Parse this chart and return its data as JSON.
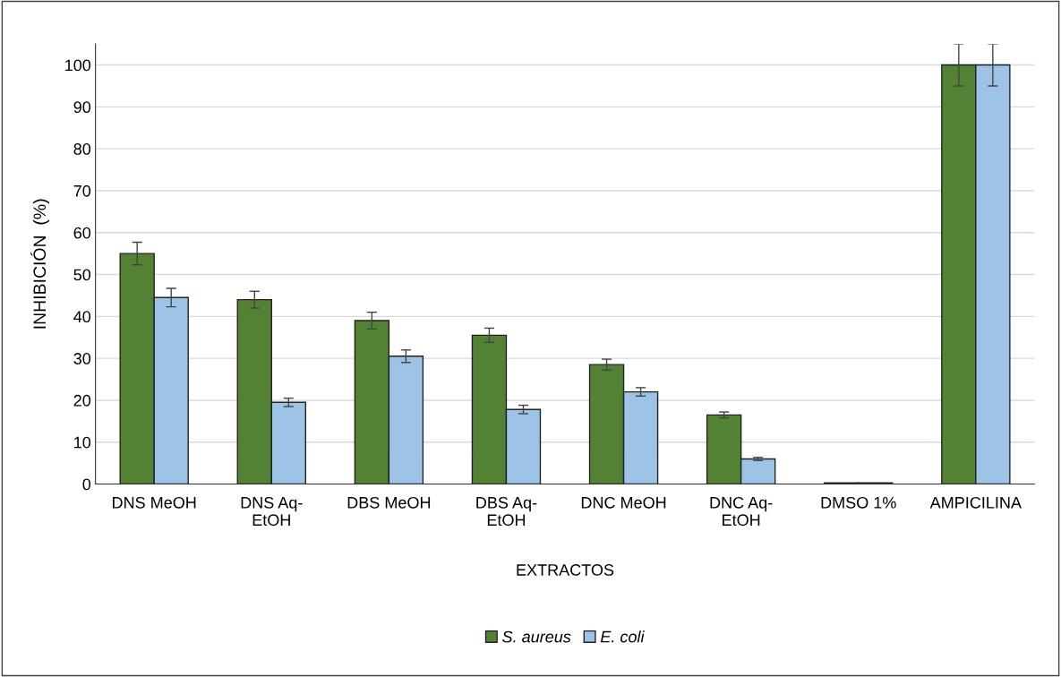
{
  "chart_data": {
    "type": "bar",
    "xlabel": "EXTRACTOS",
    "ylabel": "INHIBICIÓN  (%)",
    "categories": [
      "DNS MeOH",
      "DNS Aq-\nEtOH",
      "DBS MeOH",
      "DBS Aq-\nEtOH",
      "DNC MeOH",
      "DNC Aq-\nEtOH",
      "DMSO 1%",
      "AMPICILINA"
    ],
    "series": [
      {
        "name": "S. aureus",
        "color": "#548235",
        "values": [
          55,
          44,
          39,
          35.5,
          28.5,
          16.5,
          0.3,
          100
        ],
        "errors": [
          2.7,
          2,
          2,
          1.7,
          1.3,
          0.7,
          null,
          5
        ]
      },
      {
        "name": "E. coli",
        "color": "#9dc3e6",
        "values": [
          44.5,
          19.5,
          30.5,
          17.8,
          22,
          6,
          0.3,
          100
        ],
        "errors": [
          2.2,
          1,
          1.5,
          1,
          1,
          0.4,
          null,
          5
        ]
      }
    ],
    "ylim": [
      0,
      105
    ],
    "yticks": [
      0,
      10,
      20,
      30,
      40,
      50,
      60,
      70,
      80,
      90,
      100
    ],
    "grid": "y",
    "legend": "bottom"
  }
}
